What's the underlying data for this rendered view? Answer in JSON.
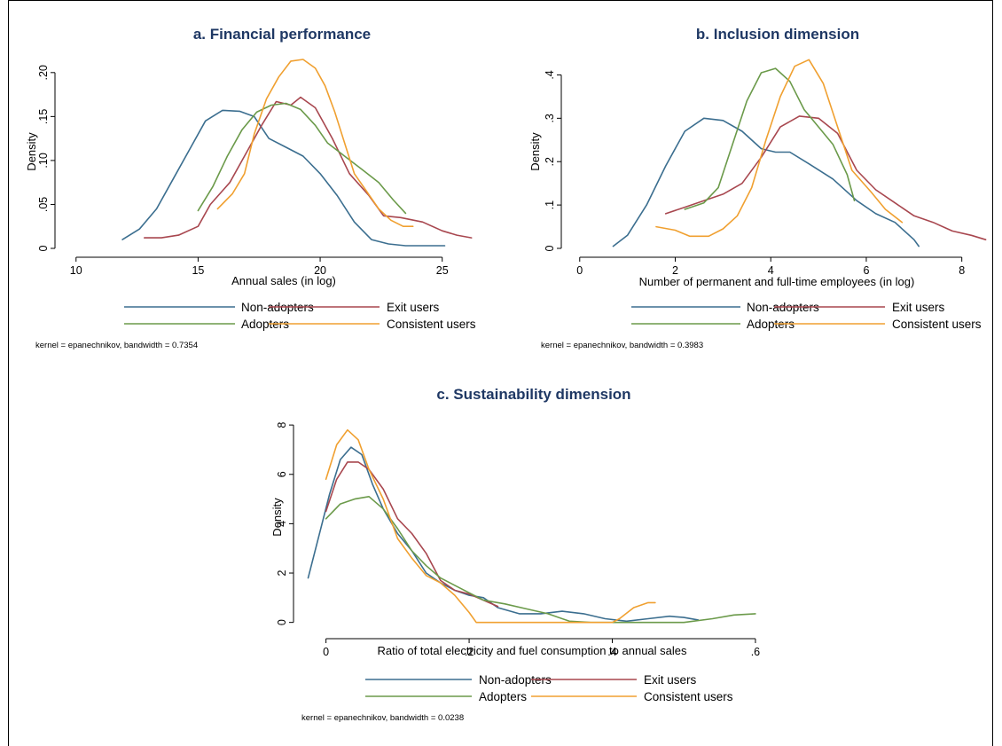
{
  "series_names": [
    "Non-adopters",
    "Exit users",
    "Adopters",
    "Consistent users"
  ],
  "series_colors": {
    "Non-adopters": "#3b6e8f",
    "Exit users": "#a8474f",
    "Adopters": "#6b9a4a",
    "Consistent users": "#f0a030"
  },
  "chart_data": [
    {
      "type": "line",
      "title": "a. Financial performance",
      "xlabel": "Annual sales (in log)",
      "ylabel": "Density",
      "xlim": [
        9.5,
        26.5
      ],
      "ylim": [
        0,
        0.22
      ],
      "xticks": [
        10,
        15,
        20,
        25
      ],
      "xtick_labels": [
        "10",
        "15",
        "20",
        "25"
      ],
      "yticks": [
        0,
        0.05,
        0.1,
        0.15,
        0.2
      ],
      "ytick_labels": [
        "0",
        ".05",
        ".10",
        ".15",
        ".20"
      ],
      "note": "kernel = epanechnikov, bandwidth = 0.7354",
      "series": [
        {
          "name": "Non-adopters",
          "points": [
            [
              11.9,
              0.01
            ],
            [
              12.6,
              0.022
            ],
            [
              13.3,
              0.045
            ],
            [
              14.0,
              0.08
            ],
            [
              14.7,
              0.115
            ],
            [
              15.3,
              0.145
            ],
            [
              16.0,
              0.157
            ],
            [
              16.7,
              0.156
            ],
            [
              17.3,
              0.15
            ],
            [
              17.9,
              0.125
            ],
            [
              18.6,
              0.115
            ],
            [
              19.3,
              0.105
            ],
            [
              20.0,
              0.085
            ],
            [
              20.7,
              0.06
            ],
            [
              21.4,
              0.03
            ],
            [
              22.1,
              0.01
            ],
            [
              22.8,
              0.005
            ],
            [
              23.5,
              0.003
            ],
            [
              24.2,
              0.003
            ],
            [
              25.1,
              0.003
            ]
          ]
        },
        {
          "name": "Exit users",
          "points": [
            [
              12.8,
              0.012
            ],
            [
              13.5,
              0.012
            ],
            [
              14.2,
              0.015
            ],
            [
              15.0,
              0.025
            ],
            [
              15.5,
              0.05
            ],
            [
              16.3,
              0.075
            ],
            [
              17.0,
              0.11
            ],
            [
              17.6,
              0.14
            ],
            [
              18.2,
              0.167
            ],
            [
              18.8,
              0.163
            ],
            [
              19.2,
              0.172
            ],
            [
              19.8,
              0.16
            ],
            [
              20.5,
              0.125
            ],
            [
              21.2,
              0.085
            ],
            [
              22.0,
              0.06
            ],
            [
              22.6,
              0.037
            ],
            [
              23.3,
              0.035
            ],
            [
              24.2,
              0.03
            ],
            [
              25.0,
              0.02
            ],
            [
              25.6,
              0.015
            ],
            [
              26.2,
              0.012
            ]
          ]
        },
        {
          "name": "Adopters",
          "points": [
            [
              15.0,
              0.043
            ],
            [
              15.6,
              0.07
            ],
            [
              16.2,
              0.105
            ],
            [
              16.8,
              0.135
            ],
            [
              17.4,
              0.155
            ],
            [
              18.0,
              0.163
            ],
            [
              18.6,
              0.165
            ],
            [
              19.2,
              0.158
            ],
            [
              19.8,
              0.14
            ],
            [
              20.3,
              0.12
            ],
            [
              21.0,
              0.105
            ],
            [
              21.7,
              0.09
            ],
            [
              22.4,
              0.075
            ],
            [
              23.0,
              0.055
            ],
            [
              23.5,
              0.04
            ]
          ]
        },
        {
          "name": "Consistent users",
          "points": [
            [
              15.8,
              0.045
            ],
            [
              16.4,
              0.062
            ],
            [
              16.9,
              0.085
            ],
            [
              17.3,
              0.13
            ],
            [
              17.8,
              0.17
            ],
            [
              18.3,
              0.195
            ],
            [
              18.8,
              0.213
            ],
            [
              19.3,
              0.215
            ],
            [
              19.8,
              0.205
            ],
            [
              20.2,
              0.185
            ],
            [
              20.6,
              0.155
            ],
            [
              21.0,
              0.12
            ],
            [
              21.4,
              0.085
            ],
            [
              21.9,
              0.065
            ],
            [
              22.4,
              0.045
            ],
            [
              22.9,
              0.032
            ],
            [
              23.4,
              0.025
            ],
            [
              23.8,
              0.025
            ]
          ]
        }
      ]
    },
    {
      "type": "line",
      "title": "b. Inclusion dimension",
      "xlabel": "Number of permanent and full-time employees (in log)",
      "ylabel": "Density",
      "xlim": [
        -0.2,
        8.6
      ],
      "ylim": [
        0,
        0.45
      ],
      "xticks": [
        0,
        2,
        4,
        6,
        8
      ],
      "xtick_labels": [
        "0",
        "2",
        "4",
        "6",
        "8"
      ],
      "yticks": [
        0,
        0.1,
        0.2,
        0.3,
        0.4
      ],
      "ytick_labels": [
        "0",
        ".1",
        ".2",
        ".3",
        ".4"
      ],
      "note": "kernel = epanechnikov, bandwidth = 0.3983",
      "series": [
        {
          "name": "Non-adopters",
          "points": [
            [
              0.7,
              0.005
            ],
            [
              1.0,
              0.03
            ],
            [
              1.4,
              0.1
            ],
            [
              1.8,
              0.19
            ],
            [
              2.2,
              0.27
            ],
            [
              2.6,
              0.3
            ],
            [
              3.0,
              0.295
            ],
            [
              3.4,
              0.27
            ],
            [
              3.8,
              0.23
            ],
            [
              4.1,
              0.222
            ],
            [
              4.4,
              0.222
            ],
            [
              4.8,
              0.195
            ],
            [
              5.3,
              0.16
            ],
            [
              5.8,
              0.11
            ],
            [
              6.2,
              0.08
            ],
            [
              6.6,
              0.06
            ],
            [
              7.0,
              0.02
            ],
            [
              7.1,
              0.005
            ]
          ]
        },
        {
          "name": "Exit users",
          "points": [
            [
              1.8,
              0.08
            ],
            [
              2.2,
              0.095
            ],
            [
              2.6,
              0.11
            ],
            [
              3.0,
              0.125
            ],
            [
              3.4,
              0.15
            ],
            [
              3.8,
              0.21
            ],
            [
              4.2,
              0.28
            ],
            [
              4.6,
              0.305
            ],
            [
              5.0,
              0.3
            ],
            [
              5.4,
              0.265
            ],
            [
              5.8,
              0.18
            ],
            [
              6.2,
              0.135
            ],
            [
              6.6,
              0.105
            ],
            [
              7.0,
              0.075
            ],
            [
              7.4,
              0.06
            ],
            [
              7.8,
              0.04
            ],
            [
              8.2,
              0.03
            ],
            [
              8.5,
              0.02
            ]
          ]
        },
        {
          "name": "Adopters",
          "points": [
            [
              2.2,
              0.09
            ],
            [
              2.6,
              0.105
            ],
            [
              2.9,
              0.14
            ],
            [
              3.2,
              0.24
            ],
            [
              3.5,
              0.34
            ],
            [
              3.8,
              0.405
            ],
            [
              4.1,
              0.415
            ],
            [
              4.4,
              0.385
            ],
            [
              4.7,
              0.32
            ],
            [
              5.0,
              0.28
            ],
            [
              5.3,
              0.24
            ],
            [
              5.6,
              0.17
            ],
            [
              5.75,
              0.11
            ]
          ]
        },
        {
          "name": "Consistent users",
          "points": [
            [
              1.6,
              0.05
            ],
            [
              2.0,
              0.042
            ],
            [
              2.3,
              0.028
            ],
            [
              2.7,
              0.028
            ],
            [
              3.0,
              0.045
            ],
            [
              3.3,
              0.075
            ],
            [
              3.6,
              0.14
            ],
            [
              3.9,
              0.25
            ],
            [
              4.2,
              0.35
            ],
            [
              4.5,
              0.42
            ],
            [
              4.8,
              0.435
            ],
            [
              5.1,
              0.38
            ],
            [
              5.4,
              0.28
            ],
            [
              5.7,
              0.18
            ],
            [
              6.1,
              0.13
            ],
            [
              6.4,
              0.09
            ],
            [
              6.75,
              0.06
            ]
          ]
        }
      ]
    },
    {
      "type": "line",
      "title": "c. Sustainability dimension",
      "xlabel": "Ratio of total electricity and fuel consumption to annual sales",
      "ylabel": "Density",
      "xlim": [
        -0.033,
        0.61
      ],
      "ylim": [
        -0.3,
        8.4
      ],
      "xticks": [
        0,
        0.2,
        0.4,
        0.6
      ],
      "xtick_labels": [
        "0",
        ".2",
        ".4",
        ".6"
      ],
      "yticks": [
        0,
        2,
        4,
        6,
        8
      ],
      "ytick_labels": [
        "0",
        "2",
        "4",
        "6",
        "8"
      ],
      "note": "kernel = epanechnikov, bandwidth = 0.0238",
      "series": [
        {
          "name": "Non-adopters",
          "points": [
            [
              -0.025,
              1.8
            ],
            [
              -0.01,
              3.5
            ],
            [
              0.005,
              5.2
            ],
            [
              0.02,
              6.6
            ],
            [
              0.035,
              7.1
            ],
            [
              0.05,
              6.8
            ],
            [
              0.065,
              5.6
            ],
            [
              0.08,
              4.6
            ],
            [
              0.1,
              3.6
            ],
            [
              0.12,
              2.9
            ],
            [
              0.14,
              2.0
            ],
            [
              0.16,
              1.6
            ],
            [
              0.18,
              1.3
            ],
            [
              0.2,
              1.1
            ],
            [
              0.22,
              1.0
            ],
            [
              0.24,
              0.6
            ],
            [
              0.27,
              0.35
            ],
            [
              0.3,
              0.35
            ],
            [
              0.33,
              0.45
            ],
            [
              0.36,
              0.35
            ],
            [
              0.39,
              0.15
            ],
            [
              0.42,
              0.05
            ],
            [
              0.45,
              0.15
            ],
            [
              0.48,
              0.25
            ],
            [
              0.5,
              0.2
            ],
            [
              0.52,
              0.1
            ]
          ]
        },
        {
          "name": "Exit users",
          "points": [
            [
              0.0,
              4.5
            ],
            [
              0.015,
              5.8
            ],
            [
              0.03,
              6.5
            ],
            [
              0.045,
              6.5
            ],
            [
              0.06,
              6.2
            ],
            [
              0.08,
              5.4
            ],
            [
              0.1,
              4.2
            ],
            [
              0.12,
              3.6
            ],
            [
              0.14,
              2.8
            ],
            [
              0.16,
              1.7
            ],
            [
              0.18,
              1.3
            ],
            [
              0.2,
              1.15
            ],
            [
              0.22,
              0.9
            ],
            [
              0.24,
              0.65
            ]
          ]
        },
        {
          "name": "Adopters",
          "points": [
            [
              0.0,
              4.2
            ],
            [
              0.02,
              4.8
            ],
            [
              0.04,
              5.0
            ],
            [
              0.06,
              5.1
            ],
            [
              0.08,
              4.6
            ],
            [
              0.1,
              3.8
            ],
            [
              0.12,
              2.9
            ],
            [
              0.14,
              2.3
            ],
            [
              0.16,
              1.8
            ],
            [
              0.18,
              1.5
            ],
            [
              0.2,
              1.2
            ],
            [
              0.22,
              0.9
            ],
            [
              0.25,
              0.75
            ],
            [
              0.28,
              0.55
            ],
            [
              0.31,
              0.35
            ],
            [
              0.34,
              0.05
            ],
            [
              0.37,
              0.0
            ],
            [
              0.4,
              0.0
            ],
            [
              0.43,
              0.0
            ],
            [
              0.46,
              0.0
            ],
            [
              0.5,
              0.0
            ],
            [
              0.54,
              0.15
            ],
            [
              0.57,
              0.3
            ],
            [
              0.6,
              0.35
            ]
          ]
        },
        {
          "name": "Consistent users",
          "points": [
            [
              0.0,
              5.8
            ],
            [
              0.015,
              7.2
            ],
            [
              0.03,
              7.8
            ],
            [
              0.045,
              7.4
            ],
            [
              0.06,
              6.2
            ],
            [
              0.08,
              5.0
            ],
            [
              0.1,
              3.4
            ],
            [
              0.12,
              2.6
            ],
            [
              0.14,
              1.9
            ],
            [
              0.16,
              1.6
            ],
            [
              0.18,
              1.1
            ],
            [
              0.2,
              0.4
            ],
            [
              0.21,
              0.0
            ],
            [
              0.25,
              0.0
            ],
            [
              0.3,
              0.0
            ],
            [
              0.35,
              0.0
            ],
            [
              0.4,
              0.0
            ],
            [
              0.41,
              0.15
            ],
            [
              0.43,
              0.6
            ],
            [
              0.45,
              0.8
            ],
            [
              0.46,
              0.8
            ]
          ]
        }
      ]
    }
  ]
}
